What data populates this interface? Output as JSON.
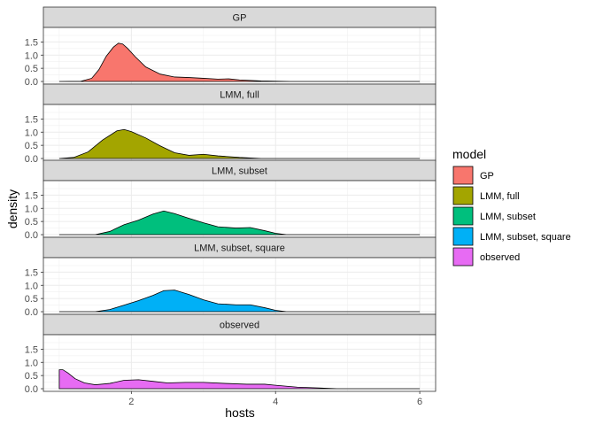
{
  "chart_data": {
    "type": "area",
    "xlabel": "hosts",
    "ylabel": "density",
    "xlim": [
      0.78,
      6.22
    ],
    "ylim": [
      -0.1,
      2.05
    ],
    "x_ticks": [
      2,
      4,
      6
    ],
    "y_ticks": [
      0.0,
      0.5,
      1.0,
      1.5
    ],
    "y_tick_labels": [
      "0.0",
      "0.5",
      "1.0",
      "1.5"
    ],
    "grid": true,
    "legend": {
      "title": "model",
      "position": "right",
      "entries": [
        "GP",
        "LMM, full",
        "LMM, subset",
        "LMM, subset, square",
        "observed"
      ]
    },
    "series": [
      {
        "name": "GP",
        "color": "#F8766D",
        "x": [
          1.0,
          1.3,
          1.45,
          1.55,
          1.65,
          1.75,
          1.82,
          1.88,
          1.95,
          2.05,
          2.2,
          2.4,
          2.6,
          2.8,
          3.0,
          3.2,
          3.35,
          3.5,
          3.8,
          4.2,
          6.0
        ],
        "y": [
          0.0,
          0.01,
          0.12,
          0.45,
          0.95,
          1.3,
          1.45,
          1.42,
          1.25,
          0.95,
          0.55,
          0.28,
          0.17,
          0.15,
          0.12,
          0.09,
          0.1,
          0.06,
          0.02,
          0.0,
          0.0
        ]
      },
      {
        "name": "LMM, full",
        "color": "#A3A500",
        "x": [
          1.0,
          1.2,
          1.4,
          1.6,
          1.8,
          1.9,
          2.0,
          2.2,
          2.4,
          2.6,
          2.8,
          3.0,
          3.2,
          3.5,
          3.8,
          6.0
        ],
        "y": [
          0.0,
          0.04,
          0.25,
          0.7,
          1.05,
          1.1,
          1.02,
          0.78,
          0.48,
          0.22,
          0.12,
          0.16,
          0.1,
          0.04,
          0.0,
          0.0
        ]
      },
      {
        "name": "LMM, subset",
        "color": "#00BF7D",
        "x": [
          1.0,
          1.5,
          1.7,
          1.9,
          2.1,
          2.3,
          2.45,
          2.6,
          2.8,
          3.0,
          3.2,
          3.45,
          3.65,
          3.85,
          4.0,
          4.15,
          6.0
        ],
        "y": [
          0.0,
          0.0,
          0.12,
          0.38,
          0.55,
          0.78,
          0.9,
          0.8,
          0.62,
          0.45,
          0.3,
          0.25,
          0.27,
          0.15,
          0.05,
          0.0,
          0.0
        ]
      },
      {
        "name": "LMM, subset, square",
        "color": "#00B0F6",
        "x": [
          1.0,
          1.5,
          1.7,
          1.9,
          2.1,
          2.3,
          2.45,
          2.6,
          2.8,
          3.0,
          3.2,
          3.45,
          3.65,
          3.85,
          4.0,
          4.15,
          6.0
        ],
        "y": [
          0.0,
          0.0,
          0.08,
          0.25,
          0.42,
          0.62,
          0.8,
          0.82,
          0.65,
          0.45,
          0.3,
          0.26,
          0.26,
          0.15,
          0.05,
          0.0,
          0.0
        ]
      },
      {
        "name": "observed",
        "color": "#E76BF3",
        "x": [
          1.0,
          1.05,
          1.12,
          1.22,
          1.35,
          1.5,
          1.7,
          1.9,
          2.1,
          2.3,
          2.5,
          2.75,
          3.0,
          3.3,
          3.6,
          3.85,
          4.0,
          4.3,
          4.6,
          4.85,
          6.0
        ],
        "y": [
          0.72,
          0.72,
          0.6,
          0.38,
          0.22,
          0.15,
          0.2,
          0.32,
          0.34,
          0.28,
          0.22,
          0.24,
          0.24,
          0.2,
          0.17,
          0.17,
          0.13,
          0.06,
          0.03,
          0.0,
          0.0
        ]
      }
    ]
  }
}
